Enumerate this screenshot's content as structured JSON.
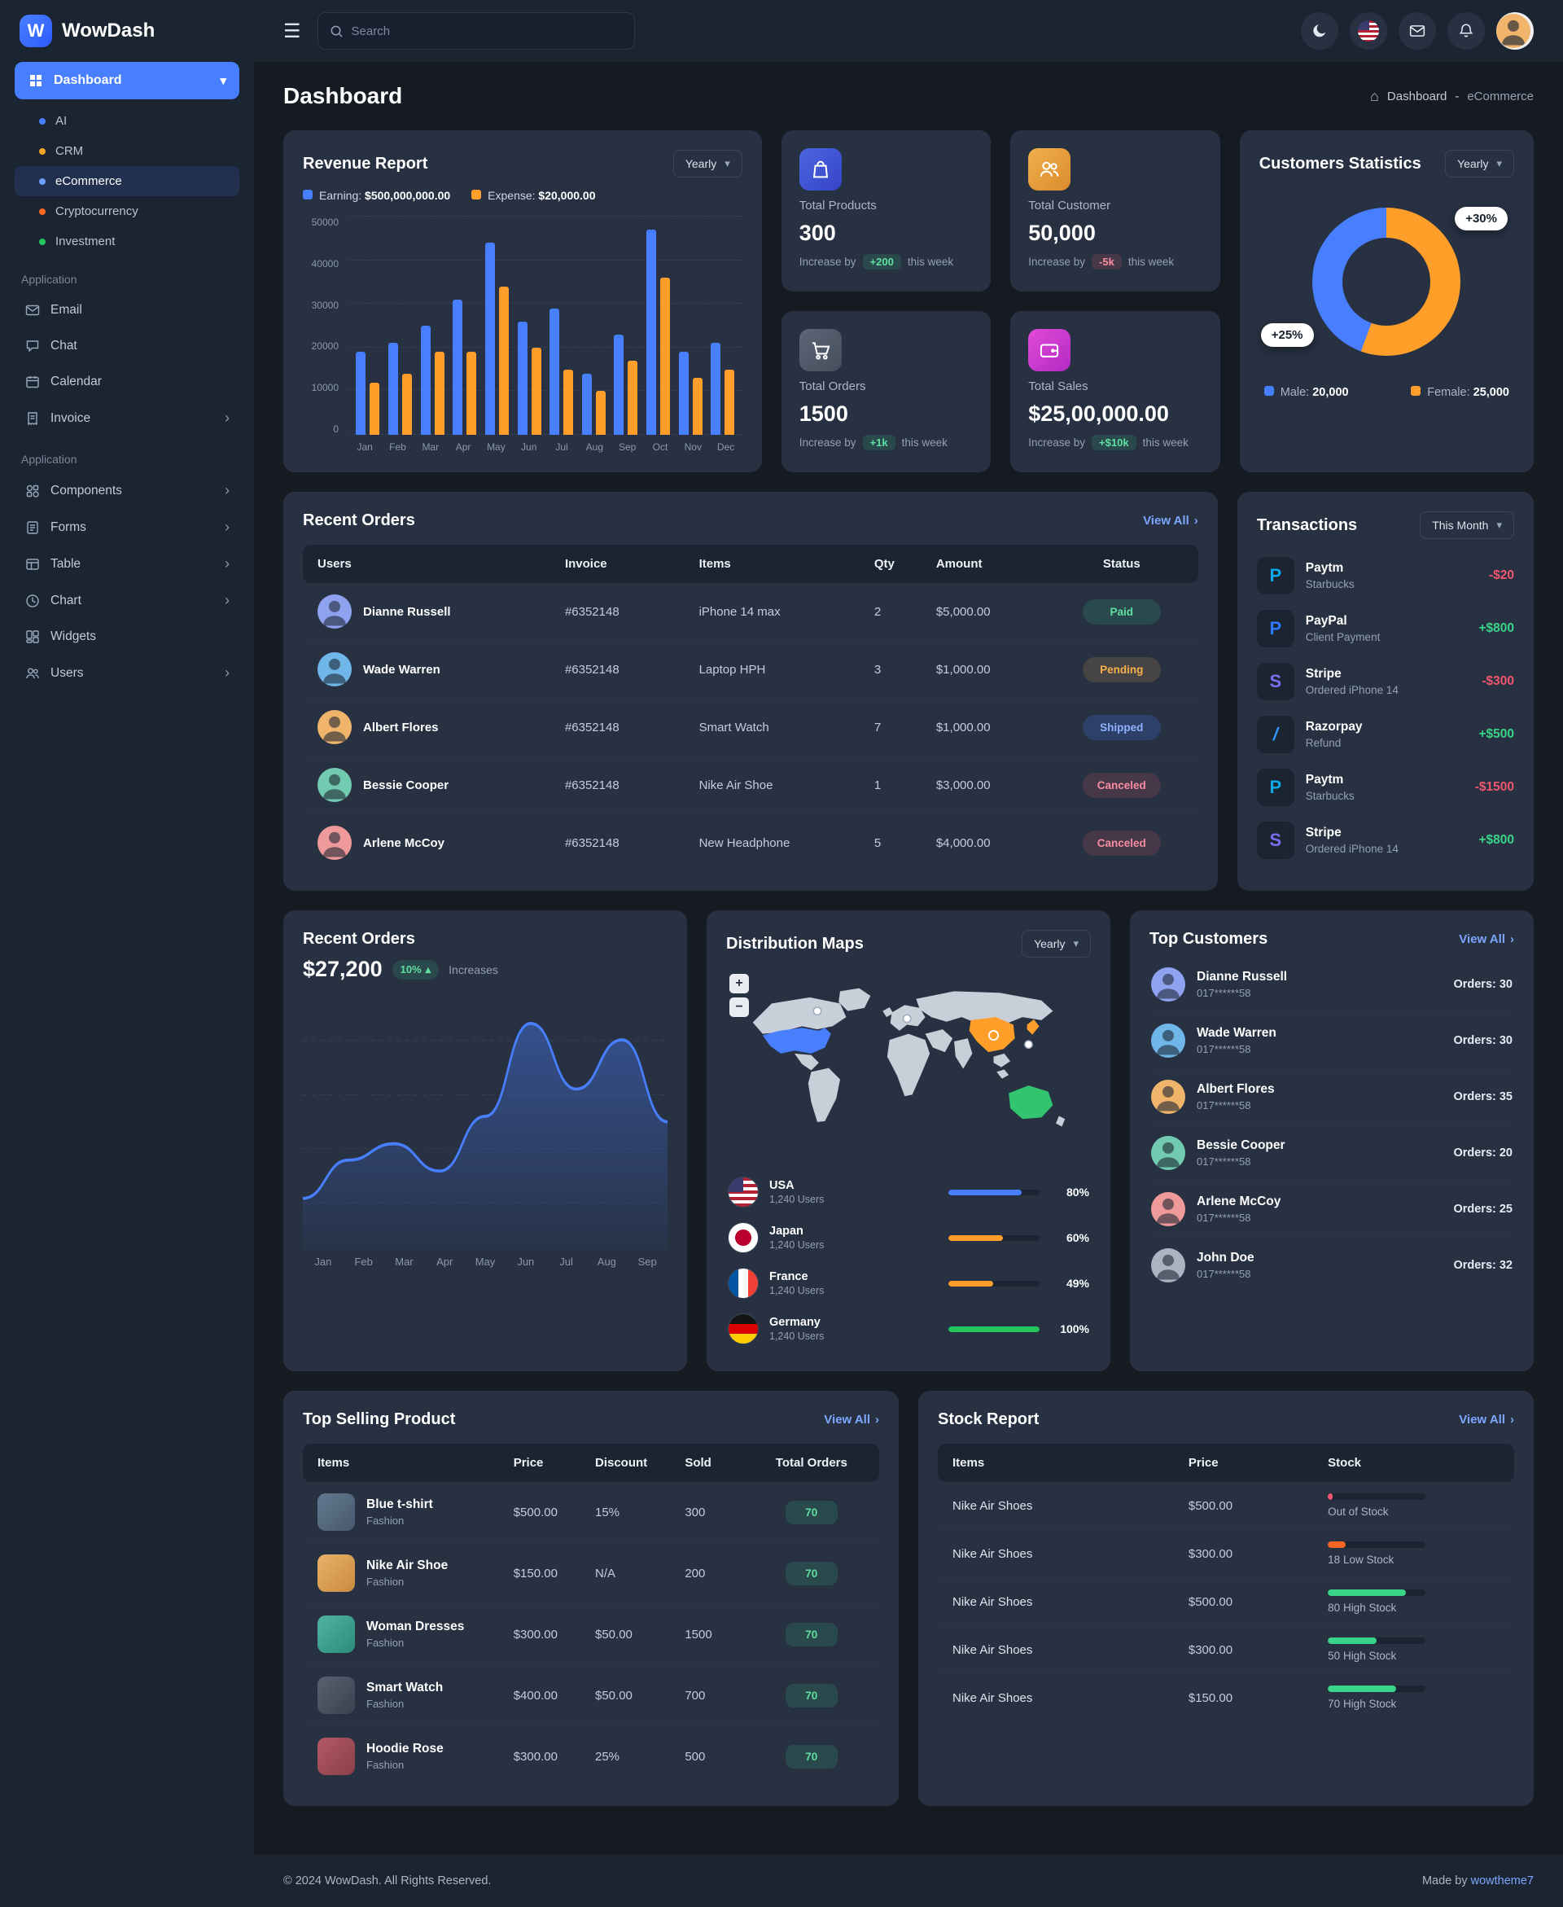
{
  "icons": {
    "hamburger": "☰",
    "chevron_down": "▾",
    "chevron_right": "›",
    "arrow_up": "▴",
    "plus": "+",
    "minus": "−",
    "home": "⌂"
  },
  "brand": {
    "name": "WowDash",
    "logo_letter": "W"
  },
  "topbar": {
    "search_placeholder": "Search"
  },
  "sidebar": {
    "dashboard_label": "Dashboard",
    "dashboard_children": [
      {
        "label": "AI",
        "dot": "#487fff"
      },
      {
        "label": "CRM",
        "dot": "#f5a524"
      },
      {
        "label": "eCommerce",
        "dot": "#6c9fff"
      },
      {
        "label": "Cryptocurrency",
        "dot": "#f86624"
      },
      {
        "label": "Investment",
        "dot": "#22c55e"
      }
    ],
    "section_1": "Application",
    "application_items": [
      {
        "label": "Email"
      },
      {
        "label": "Chat"
      },
      {
        "label": "Calendar"
      },
      {
        "label": "Invoice"
      }
    ],
    "section_2": "Application",
    "ui_items": [
      {
        "label": "Components"
      },
      {
        "label": "Forms"
      },
      {
        "label": "Table"
      },
      {
        "label": "Chart"
      },
      {
        "label": "Widgets"
      },
      {
        "label": "Users"
      }
    ]
  },
  "page": {
    "title": "Dashboard",
    "breadcrumb_home": "Dashboard",
    "breadcrumb_sep": "-",
    "breadcrumb_current": "eCommerce"
  },
  "revenue_report": {
    "title": "Revenue Report",
    "period": "Yearly",
    "legend": [
      {
        "label": "Earning:",
        "value": "$500,000,000.00",
        "color": "#487fff"
      },
      {
        "label": "Expense:",
        "value": "$20,000.00",
        "color": "#ff9f29"
      }
    ],
    "chart": {
      "type": "bar",
      "categories": [
        "Jan",
        "Feb",
        "Mar",
        "Apr",
        "May",
        "Jun",
        "Jul",
        "Aug",
        "Sep",
        "Oct",
        "Nov",
        "Dec"
      ],
      "series": [
        {
          "name": "Earning",
          "color": "#487fff",
          "values": [
            19000,
            21000,
            25000,
            31000,
            44000,
            26000,
            29000,
            14000,
            23000,
            47000,
            19000,
            21000
          ]
        },
        {
          "name": "Expense",
          "color": "#ff9f29",
          "values": [
            12000,
            14000,
            19000,
            19000,
            34000,
            20000,
            15000,
            10000,
            17000,
            36000,
            13000,
            15000
          ]
        }
      ],
      "ylim": [
        0,
        50000
      ],
      "yticks": [
        0,
        10000,
        20000,
        30000,
        40000,
        50000
      ]
    }
  },
  "stats": [
    {
      "title": "Total Products",
      "value": "300",
      "change_prefix": "Increase by",
      "change": "+200",
      "change_suffix": "this week"
    },
    {
      "title": "Total Customer",
      "value": "50,000",
      "change_prefix": "Increase by",
      "change": "-5k",
      "change_suffix": "this week"
    },
    {
      "title": "Total Orders",
      "value": "1500",
      "change_prefix": "Increase by",
      "change": "+1k",
      "change_suffix": "this week"
    },
    {
      "title": "Total Sales",
      "value": "$25,00,000.00",
      "change_prefix": "Increase by",
      "change": "+$10k",
      "change_suffix": "this week"
    }
  ],
  "customers_statistics": {
    "title": "Customers Statistics",
    "period": "Yearly",
    "badge_top": "+30%",
    "badge_bottom": "+25%",
    "chart": {
      "type": "donut",
      "slices": [
        {
          "label": "Male:",
          "value": 20000,
          "display": "20,000",
          "color": "#487fff"
        },
        {
          "label": "Female:",
          "value": 25000,
          "display": "25,000",
          "color": "#ff9f29"
        }
      ]
    }
  },
  "recent_orders_table": {
    "title": "Recent Orders",
    "view_all": "View All",
    "headers": [
      "Users",
      "Invoice",
      "Items",
      "Qty",
      "Amount",
      "Status"
    ],
    "rows": [
      {
        "user": "Dianne Russell",
        "invoice": "#6352148",
        "item": "iPhone 14 max",
        "qty": "2",
        "amount": "$5,000.00",
        "status": "Paid"
      },
      {
        "user": "Wade Warren",
        "invoice": "#6352148",
        "item": "Laptop HPH",
        "qty": "3",
        "amount": "$1,000.00",
        "status": "Pending"
      },
      {
        "user": "Albert Flores",
        "invoice": "#6352148",
        "item": "Smart Watch",
        "qty": "7",
        "amount": "$1,000.00",
        "status": "Shipped"
      },
      {
        "user": "Bessie Cooper",
        "invoice": "#6352148",
        "item": "Nike Air Shoe",
        "qty": "1",
        "amount": "$3,000.00",
        "status": "Canceled"
      },
      {
        "user": "Arlene McCoy",
        "invoice": "#6352148",
        "item": "New Headphone",
        "qty": "5",
        "amount": "$4,000.00",
        "status": "Canceled"
      }
    ]
  },
  "transactions": {
    "title": "Transactions",
    "period": "This Month",
    "items": [
      {
        "name": "Paytm",
        "desc": "Starbucks",
        "amount": "-$20",
        "icon_letter": "P"
      },
      {
        "name": "PayPal",
        "desc": "Client Payment",
        "amount": "+$800",
        "icon_letter": "P"
      },
      {
        "name": "Stripe",
        "desc": "Ordered iPhone 14",
        "amount": "-$300",
        "icon_letter": "S"
      },
      {
        "name": "Razorpay",
        "desc": "Refund",
        "amount": "+$500",
        "icon_letter": "/"
      },
      {
        "name": "Paytm",
        "desc": "Starbucks",
        "amount": "-$1500",
        "icon_letter": "P"
      },
      {
        "name": "Stripe",
        "desc": "Ordered iPhone 14",
        "amount": "+$800",
        "icon_letter": "S"
      }
    ]
  },
  "recent_orders_chart": {
    "title": "Recent Orders",
    "amount": "$27,200",
    "badge": "10%",
    "note": "Increases",
    "chart": {
      "type": "area",
      "x": [
        "Jan",
        "Feb",
        "Mar",
        "Apr",
        "May",
        "Jun",
        "Jul",
        "Aug",
        "Sep"
      ],
      "values": [
        8,
        15,
        18,
        13,
        23,
        40,
        28,
        37,
        22
      ]
    }
  },
  "distribution_maps": {
    "title": "Distribution Maps",
    "period": "Yearly",
    "countries": [
      {
        "name": "USA",
        "users": "1,240 Users",
        "percent": 80,
        "percent_label": "80%",
        "color": "#487fff"
      },
      {
        "name": "Japan",
        "users": "1,240 Users",
        "percent": 60,
        "percent_label": "60%",
        "color": "#ff9f29"
      },
      {
        "name": "France",
        "users": "1,240 Users",
        "percent": 49,
        "percent_label": "49%",
        "color": "#ff9f29"
      },
      {
        "name": "Germany",
        "users": "1,240 Users",
        "percent": 100,
        "percent_label": "100%",
        "color": "#22c55e"
      }
    ]
  },
  "top_customers": {
    "title": "Top Customers",
    "view_all": "View All",
    "items": [
      {
        "name": "Dianne Russell",
        "phone": "017******58",
        "orders": "Orders: 30"
      },
      {
        "name": "Wade Warren",
        "phone": "017******58",
        "orders": "Orders: 30"
      },
      {
        "name": "Albert Flores",
        "phone": "017******58",
        "orders": "Orders: 35"
      },
      {
        "name": "Bessie Cooper",
        "phone": "017******58",
        "orders": "Orders: 20"
      },
      {
        "name": "Arlene McCoy",
        "phone": "017******58",
        "orders": "Orders: 25"
      },
      {
        "name": "John Doe",
        "phone": "017******58",
        "orders": "Orders: 32"
      }
    ]
  },
  "top_selling": {
    "title": "Top Selling Product",
    "view_all": "View All",
    "headers": [
      "Items",
      "Price",
      "Discount",
      "Sold",
      "Total Orders"
    ],
    "rows": [
      {
        "name": "Blue t-shirt",
        "category": "Fashion",
        "price": "$500.00",
        "discount": "15%",
        "sold": "300",
        "orders": "70"
      },
      {
        "name": "Nike Air Shoe",
        "category": "Fashion",
        "price": "$150.00",
        "discount": "N/A",
        "sold": "200",
        "orders": "70"
      },
      {
        "name": "Woman Dresses",
        "category": "Fashion",
        "price": "$300.00",
        "discount": "$50.00",
        "sold": "1500",
        "orders": "70"
      },
      {
        "name": "Smart Watch",
        "category": "Fashion",
        "price": "$400.00",
        "discount": "$50.00",
        "sold": "700",
        "orders": "70"
      },
      {
        "name": "Hoodie Rose",
        "category": "Fashion",
        "price": "$300.00",
        "discount": "25%",
        "sold": "500",
        "orders": "70"
      }
    ]
  },
  "stock_report": {
    "title": "Stock Report",
    "view_all": "View All",
    "headers": [
      "Items",
      "Price",
      "Stock"
    ],
    "rows": [
      {
        "name": "Nike Air Shoes",
        "price": "$500.00",
        "stock_label": "Out of Stock",
        "percent": 5,
        "color": "#f2566f"
      },
      {
        "name": "Nike Air Shoes",
        "price": "$300.00",
        "stock_label": "18 Low Stock",
        "percent": 18,
        "color": "#f86624"
      },
      {
        "name": "Nike Air Shoes",
        "price": "$500.00",
        "stock_label": "80 High Stock",
        "percent": 80,
        "color": "#3ad488"
      },
      {
        "name": "Nike Air Shoes",
        "price": "$300.00",
        "stock_label": "50 High Stock",
        "percent": 50,
        "color": "#3ad488"
      },
      {
        "name": "Nike Air Shoes",
        "price": "$150.00",
        "stock_label": "70 High Stock",
        "percent": 70,
        "color": "#3ad488"
      }
    ]
  },
  "footer": {
    "copyright": "© 2024 WowDash. All Rights Reserved.",
    "made_by": "Made by",
    "made_by_link": "wowtheme7"
  }
}
